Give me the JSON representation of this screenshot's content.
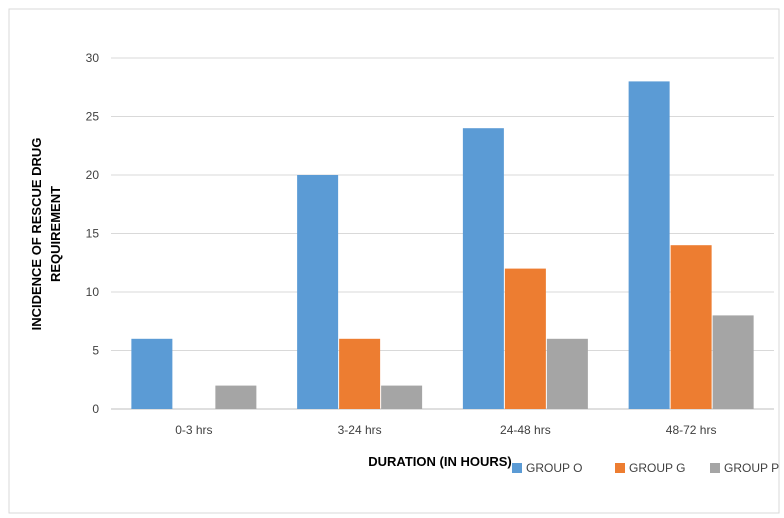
{
  "chart_data": {
    "type": "bar",
    "title": "",
    "categories": [
      "0-3 hrs",
      "3-24 hrs",
      "24-48 hrs",
      "48-72 hrs"
    ],
    "series": [
      {
        "name": "GROUP O",
        "values": [
          6,
          20,
          24,
          28
        ],
        "color": "#5B9BD5"
      },
      {
        "name": "GROUP G",
        "values": [
          0,
          6,
          12,
          14
        ],
        "color": "#ED7D31"
      },
      {
        "name": "GROUP P",
        "values": [
          2,
          2,
          6,
          8
        ],
        "color": "#A5A5A5"
      }
    ],
    "xlabel": "DURATION (IN HOURS)",
    "ylabel_lines": [
      "INCIDENCE OF RESCUE DRUG",
      "REQUIREMENT"
    ],
    "ylim": [
      0,
      30
    ],
    "yticks": [
      0,
      5,
      10,
      15,
      20,
      25,
      30
    ],
    "grid": true,
    "legend_position": "bottom-right"
  }
}
